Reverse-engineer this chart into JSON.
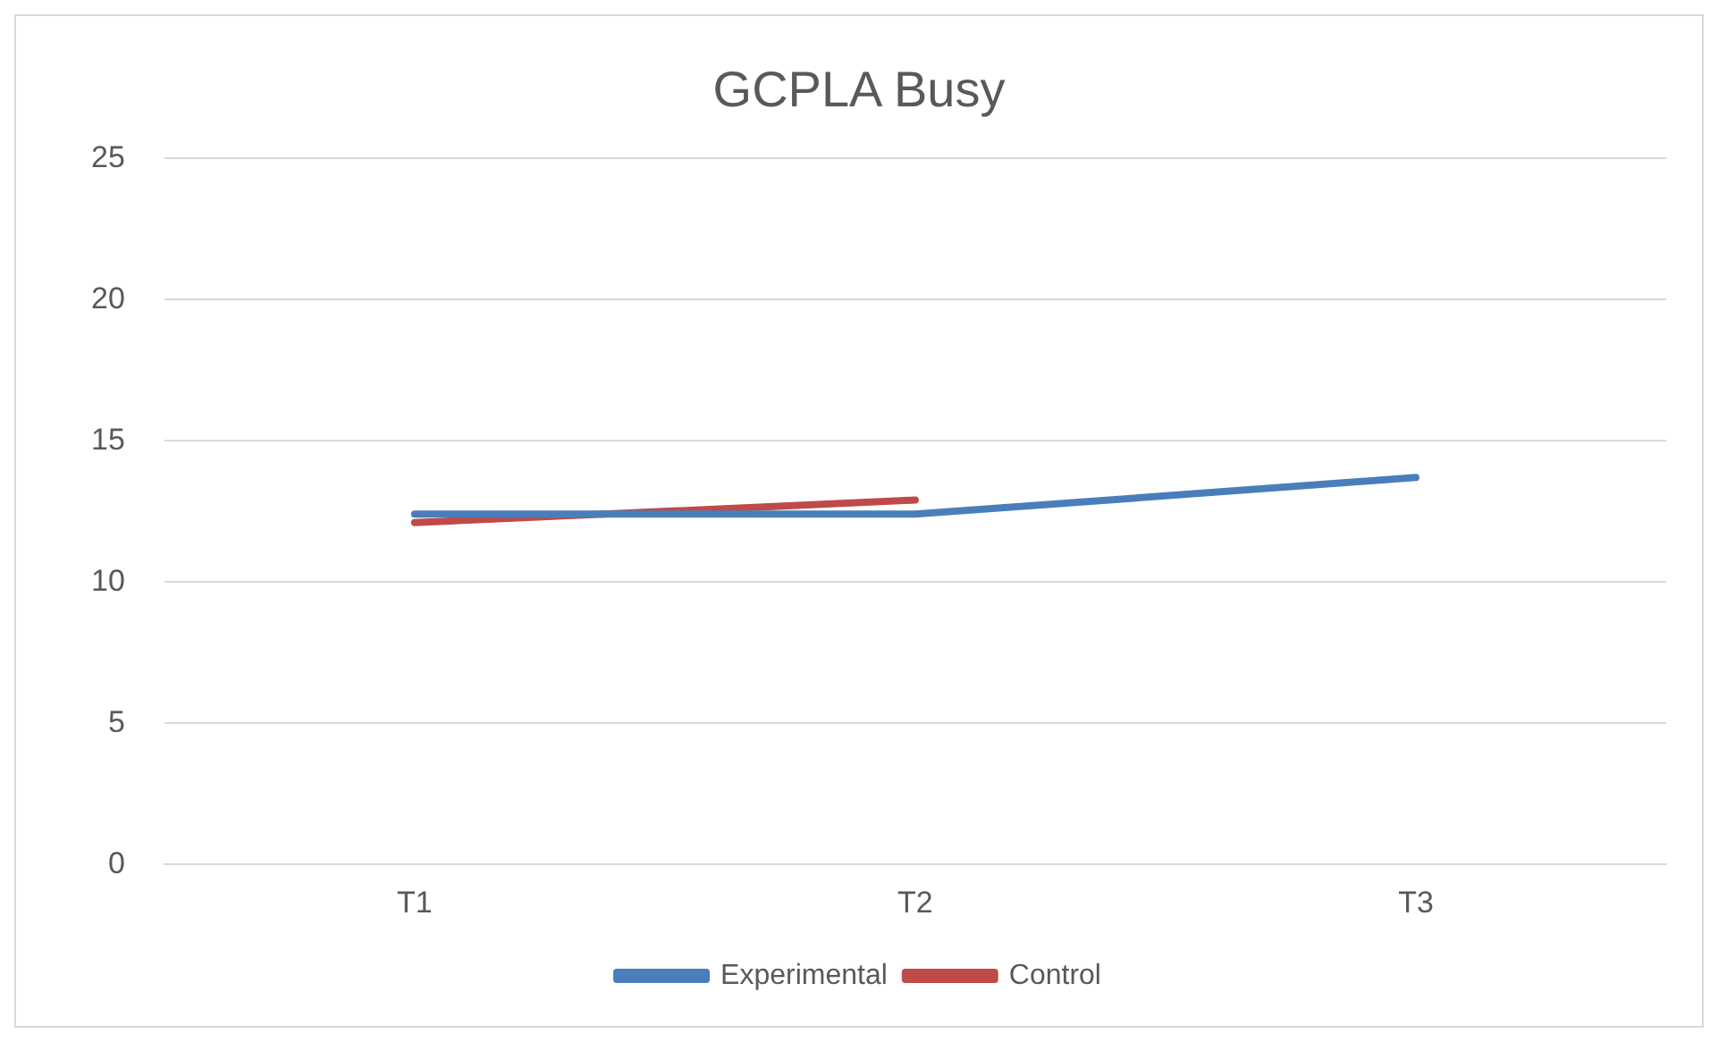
{
  "chart_data": {
    "type": "line",
    "title": "GCPLA Busy",
    "categories": [
      "T1",
      "T2",
      "T3"
    ],
    "series": [
      {
        "name": "Experimental",
        "color": "#4a7ebb",
        "values": [
          12.4,
          12.4,
          13.7
        ]
      },
      {
        "name": "Control",
        "color": "#be4b48",
        "values": [
          12.1,
          12.9,
          null
        ]
      }
    ],
    "ylim": [
      0,
      25
    ],
    "yticks": [
      0,
      5,
      10,
      15,
      20,
      25
    ],
    "grid": "y",
    "legend": "bottom",
    "marker": "none"
  }
}
